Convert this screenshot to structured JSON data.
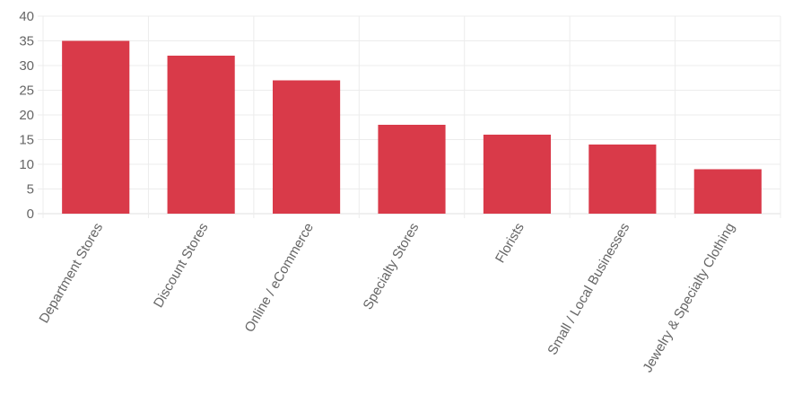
{
  "chart_data": {
    "type": "bar",
    "categories": [
      "Department Stores",
      "Discount Stores",
      "Online / eCommerce",
      "Specialty Stores",
      "Florists",
      "Small / Local Businesses",
      "Jewelry & Specialty Clothing"
    ],
    "values": [
      35,
      32,
      27,
      18,
      16,
      14,
      9
    ],
    "ylim": [
      0,
      40
    ],
    "yticks": [
      0,
      5,
      10,
      15,
      20,
      25,
      30,
      35,
      40
    ],
    "grid": true,
    "legend": "none",
    "bar_color": "#d93a49",
    "title": "",
    "xlabel": "",
    "ylabel": ""
  }
}
